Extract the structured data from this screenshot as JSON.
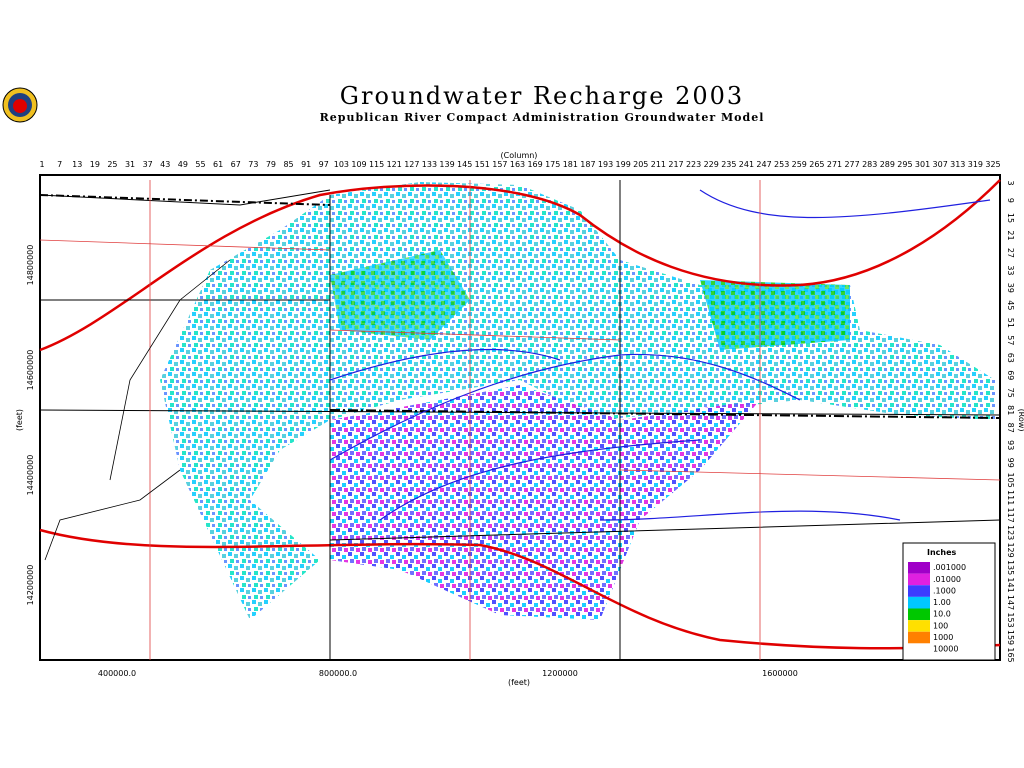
{
  "header": {
    "title": "Groundwater Recharge 2003",
    "subtitle": "Republican River Compact Administration Groundwater Model"
  },
  "map": {
    "column_label": "(Column)",
    "row_label": "(Row)",
    "x_axis_label": "(feet)",
    "y_axis_label": "(feet)",
    "column_ticks": [
      1,
      7,
      13,
      19,
      25,
      31,
      37,
      43,
      49,
      55,
      61,
      67,
      73,
      79,
      85,
      91,
      97,
      103,
      109,
      115,
      121,
      127,
      133,
      139,
      145,
      151,
      157,
      163,
      169,
      175,
      181,
      187,
      193,
      199,
      205,
      211,
      217,
      223,
      229,
      235,
      241,
      247,
      253,
      259,
      265,
      271,
      277,
      283,
      289,
      295,
      301,
      307,
      313,
      319,
      325
    ],
    "row_ticks": [
      3,
      9,
      15,
      21,
      27,
      33,
      39,
      45,
      51,
      57,
      63,
      69,
      75,
      81,
      87,
      93,
      99,
      105,
      111,
      117,
      123,
      129,
      135,
      141,
      147,
      153,
      159,
      165
    ],
    "x_ticks": [
      "400000.0",
      "800000.0",
      "1200000",
      "1600000"
    ],
    "y_ticks": [
      "14800000",
      "14600000",
      "14400000",
      "14200000"
    ]
  },
  "legend": {
    "title": "Inches",
    "items": [
      {
        "label": ".001000",
        "color": "#a000c8"
      },
      {
        "label": ".01000",
        "color": "#e020e0"
      },
      {
        "label": ".1000",
        "color": "#3c3cff"
      },
      {
        "label": "1.00",
        "color": "#00c8ff"
      },
      {
        "label": "10.0",
        "color": "#00c800"
      },
      {
        "label": "100",
        "color": "#ffe000"
      },
      {
        "label": "1000",
        "color": "#ff8000"
      },
      {
        "label": "10000",
        "color": "#ffffff"
      }
    ]
  }
}
